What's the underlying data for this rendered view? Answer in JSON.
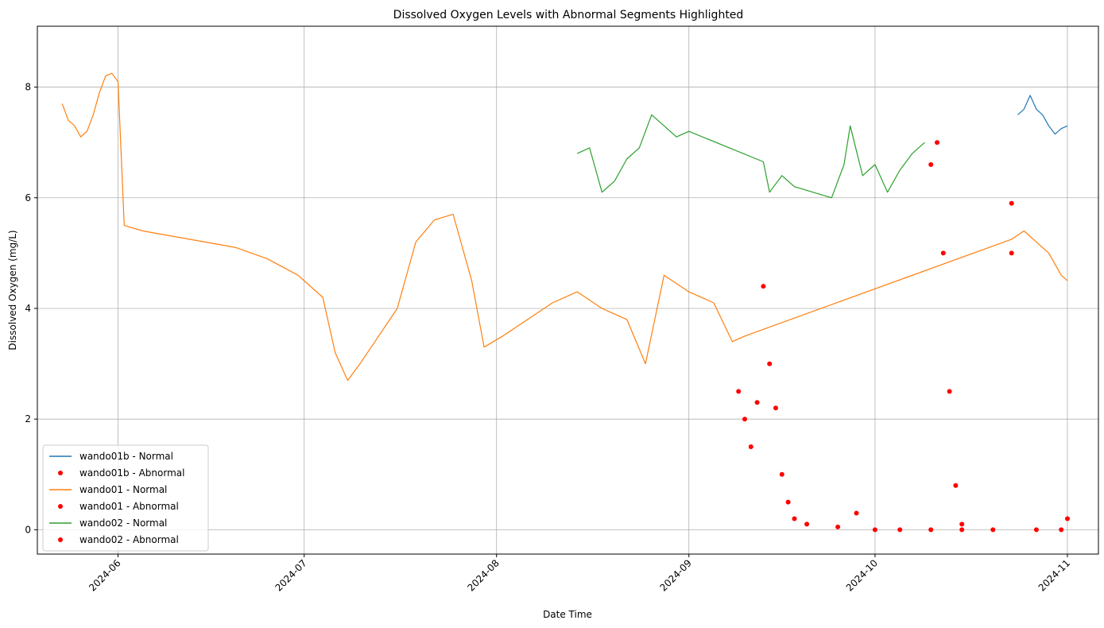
{
  "chart_data": {
    "type": "line",
    "title": "Dissolved Oxygen Levels with Abnormal Segments Highlighted",
    "xlabel": "Date Time",
    "ylabel": "Dissolved Oxygen (mg/L)",
    "xlim": [
      "2024-05-19",
      "2024-11-06"
    ],
    "ylim": [
      -0.44,
      9.1
    ],
    "x_ticks": [
      "2024-06",
      "2024-07",
      "2024-08",
      "2024-09",
      "2024-10",
      "2024-11"
    ],
    "y_ticks": [
      0,
      2,
      4,
      6,
      8
    ],
    "grid": true,
    "legend_position": "lower-left",
    "colors": {
      "wando01b": "#1f77b4",
      "wando01": "#ff7f0e",
      "wando02": "#2ca02c",
      "abnormal": "#ff0000"
    },
    "legend": [
      {
        "label": "wando01b - Normal",
        "kind": "line",
        "color": "#1f77b4"
      },
      {
        "label": "wando01b - Abnormal",
        "kind": "dot",
        "color": "#ff0000"
      },
      {
        "label": "wando01 - Normal",
        "kind": "line",
        "color": "#ff7f0e"
      },
      {
        "label": "wando01 - Abnormal",
        "kind": "dot",
        "color": "#ff0000"
      },
      {
        "label": "wando02 - Normal",
        "kind": "line",
        "color": "#2ca02c"
      },
      {
        "label": "wando02 - Abnormal",
        "kind": "dot",
        "color": "#ff0000"
      }
    ],
    "series": [
      {
        "name": "wando01b - Normal",
        "style": "line",
        "color": "#1f77b4",
        "points": [
          [
            "2024-10-24",
            7.5
          ],
          [
            "2024-10-25",
            7.6
          ],
          [
            "2024-10-26",
            7.85
          ],
          [
            "2024-10-27",
            7.6
          ],
          [
            "2024-10-28",
            7.5
          ],
          [
            "2024-10-29",
            7.3
          ],
          [
            "2024-10-30",
            7.15
          ],
          [
            "2024-10-31",
            7.25
          ],
          [
            "2024-11-01",
            7.3
          ]
        ]
      },
      {
        "name": "wando01 - Normal",
        "style": "line",
        "color": "#ff7f0e",
        "points": [
          [
            "2024-05-23",
            7.7
          ],
          [
            "2024-05-24",
            7.4
          ],
          [
            "2024-05-25",
            7.3
          ],
          [
            "2024-05-26",
            7.1
          ],
          [
            "2024-05-27",
            7.2
          ],
          [
            "2024-05-28",
            7.5
          ],
          [
            "2024-05-29",
            7.9
          ],
          [
            "2024-05-30",
            8.2
          ],
          [
            "2024-05-31",
            8.25
          ],
          [
            "2024-06-01",
            8.1
          ],
          [
            "2024-06-02",
            5.5
          ],
          [
            "2024-06-05",
            5.4
          ],
          [
            "2024-06-10",
            5.3
          ],
          [
            "2024-06-15",
            5.2
          ],
          [
            "2024-06-20",
            5.1
          ],
          [
            "2024-06-25",
            4.9
          ],
          [
            "2024-06-30",
            4.6
          ],
          [
            "2024-07-04",
            4.2
          ],
          [
            "2024-07-06",
            3.2
          ],
          [
            "2024-07-08",
            2.7
          ],
          [
            "2024-07-10",
            3.0
          ],
          [
            "2024-07-13",
            3.5
          ],
          [
            "2024-07-16",
            4.0
          ],
          [
            "2024-07-19",
            5.2
          ],
          [
            "2024-07-22",
            5.6
          ],
          [
            "2024-07-25",
            5.7
          ],
          [
            "2024-07-28",
            4.5
          ],
          [
            "2024-07-30",
            3.3
          ],
          [
            "2024-08-02",
            3.5
          ],
          [
            "2024-08-06",
            3.8
          ],
          [
            "2024-08-10",
            4.1
          ],
          [
            "2024-08-14",
            4.3
          ],
          [
            "2024-08-18",
            4.0
          ],
          [
            "2024-08-22",
            3.8
          ],
          [
            "2024-08-25",
            3.0
          ],
          [
            "2024-08-28",
            4.6
          ],
          [
            "2024-09-01",
            4.3
          ],
          [
            "2024-09-05",
            4.1
          ],
          [
            "2024-09-08",
            3.4
          ],
          [
            "2024-09-10",
            3.5
          ],
          [
            "2024-10-23",
            5.25
          ],
          [
            "2024-10-25",
            5.4
          ],
          [
            "2024-10-27",
            5.2
          ],
          [
            "2024-10-29",
            5.0
          ],
          [
            "2024-10-31",
            4.6
          ],
          [
            "2024-11-01",
            4.5
          ]
        ]
      },
      {
        "name": "wando02 - Normal",
        "style": "line",
        "color": "#2ca02c",
        "points": [
          [
            "2024-08-14",
            6.8
          ],
          [
            "2024-08-16",
            6.9
          ],
          [
            "2024-08-18",
            6.1
          ],
          [
            "2024-08-20",
            6.3
          ],
          [
            "2024-08-22",
            6.7
          ],
          [
            "2024-08-24",
            6.9
          ],
          [
            "2024-08-26",
            7.5
          ],
          [
            "2024-08-28",
            7.3
          ],
          [
            "2024-08-30",
            7.1
          ],
          [
            "2024-09-01",
            7.2
          ],
          [
            "2024-09-13",
            6.65
          ],
          [
            "2024-09-14",
            6.1
          ],
          [
            "2024-09-16",
            6.4
          ],
          [
            "2024-09-18",
            6.2
          ],
          [
            "2024-09-21",
            6.1
          ],
          [
            "2024-09-24",
            6.0
          ],
          [
            "2024-09-26",
            6.6
          ],
          [
            "2024-09-27",
            7.3
          ],
          [
            "2024-09-29",
            6.4
          ],
          [
            "2024-10-01",
            6.6
          ],
          [
            "2024-10-03",
            6.1
          ],
          [
            "2024-10-05",
            6.5
          ],
          [
            "2024-10-07",
            6.8
          ],
          [
            "2024-10-09",
            7.0
          ]
        ]
      },
      {
        "name": "wando01 - Abnormal",
        "style": "dots",
        "color": "#ff0000",
        "points": [
          [
            "2024-09-09",
            2.5
          ],
          [
            "2024-09-10",
            2.0
          ],
          [
            "2024-09-11",
            1.5
          ],
          [
            "2024-09-12",
            2.3
          ],
          [
            "2024-09-13",
            4.4
          ],
          [
            "2024-09-14",
            3.0
          ],
          [
            "2024-09-15",
            2.2
          ],
          [
            "2024-09-16",
            1.0
          ],
          [
            "2024-09-17",
            0.5
          ],
          [
            "2024-09-18",
            0.2
          ],
          [
            "2024-09-20",
            0.1
          ],
          [
            "2024-09-25",
            0.05
          ],
          [
            "2024-09-28",
            0.3
          ],
          [
            "2024-10-01",
            0.0
          ],
          [
            "2024-10-05",
            0.0
          ],
          [
            "2024-10-10",
            0.0
          ],
          [
            "2024-10-15",
            0.0
          ],
          [
            "2024-10-20",
            0.0
          ],
          [
            "2024-10-23",
            5.0
          ],
          [
            "2024-10-23",
            5.9
          ],
          [
            "2024-10-27",
            0.0
          ],
          [
            "2024-10-31",
            0.0
          ],
          [
            "2024-11-01",
            0.2
          ]
        ]
      },
      {
        "name": "wando02 - Abnormal",
        "style": "dots",
        "color": "#ff0000",
        "points": [
          [
            "2024-10-10",
            6.6
          ],
          [
            "2024-10-11",
            7.0
          ],
          [
            "2024-10-12",
            5.0
          ],
          [
            "2024-10-13",
            2.5
          ],
          [
            "2024-10-14",
            0.8
          ],
          [
            "2024-10-15",
            0.1
          ]
        ]
      }
    ]
  }
}
